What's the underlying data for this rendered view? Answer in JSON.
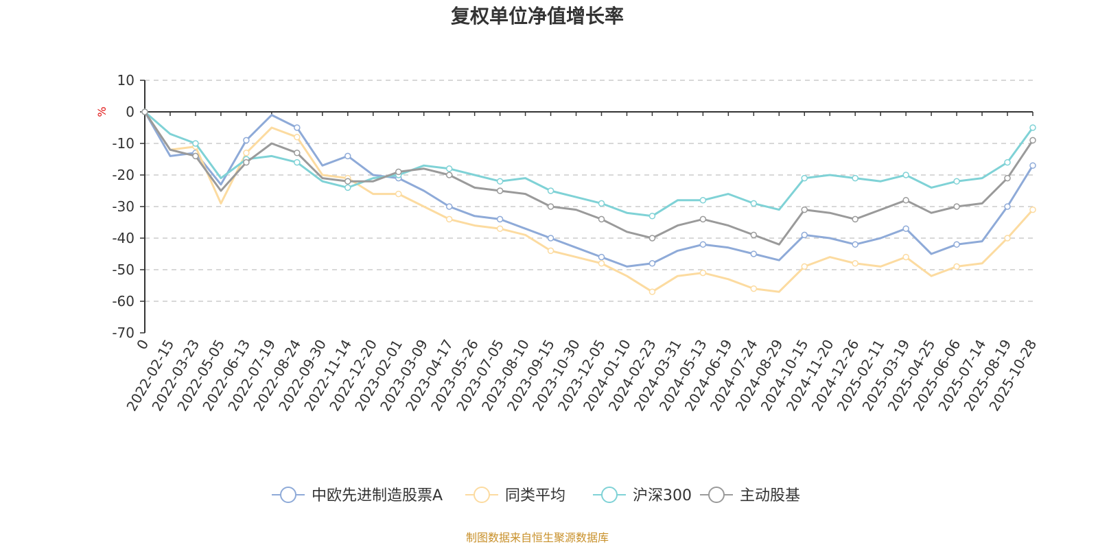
{
  "chart_data": {
    "type": "line",
    "title": "复权单位净值增长率",
    "ylabel": "%",
    "ylim": [
      -70,
      10
    ],
    "yticks": [
      10,
      0,
      -10,
      -20,
      -30,
      -40,
      -50,
      -60,
      -70
    ],
    "grid": true,
    "legend_position": "bottom",
    "x_tick_labels": [
      "0",
      "2022-02-15",
      "2022-03-23",
      "2022-05-05",
      "2022-06-13",
      "2022-07-19",
      "2022-08-24",
      "2022-09-30",
      "2022-11-14",
      "2022-12-20",
      "2023-02-01",
      "2023-03-09",
      "2023-04-17",
      "2023-05-26",
      "2023-07-05",
      "2023-08-10",
      "2023-09-15",
      "2023-10-30",
      "2023-12-05",
      "2024-01-10",
      "2024-02-23",
      "2024-03-31",
      "2024-05-13",
      "2024-06-19",
      "2024-07-24",
      "2024-08-29",
      "2024-10-15",
      "2024-11-20",
      "2024-12-26",
      "2025-02-11",
      "2025-03-19",
      "2025-04-25",
      "2025-06-06",
      "2025-07-14",
      "2025-08-19",
      "2025-10-28"
    ],
    "x": [
      "0",
      "2022-02-15",
      "2022-03-23",
      "2022-05-05",
      "2022-06-13",
      "2022-07-19",
      "2022-08-24",
      "2022-09-30",
      "2022-11-14",
      "2022-12-20",
      "2023-02-01",
      "2023-03-09",
      "2023-04-17",
      "2023-05-26",
      "2023-07-05",
      "2023-08-10",
      "2023-09-15",
      "2023-10-30",
      "2023-12-05",
      "2024-01-10",
      "2024-02-23",
      "2024-03-31",
      "2024-05-13",
      "2024-06-19",
      "2024-07-24",
      "2024-08-29",
      "2024-10-15",
      "2024-11-20",
      "2024-12-26",
      "2025-02-11",
      "2025-03-19",
      "2025-04-25",
      "2025-06-06",
      "2025-07-14",
      "2025-08-19",
      "2025-10-28"
    ],
    "series": [
      {
        "name": "中欧先进制造股票A",
        "color": "#8eaad8",
        "values": [
          0,
          -14,
          -13,
          -23,
          -9,
          -1,
          -5,
          -17,
          -14,
          -20,
          -21,
          -25,
          -30,
          -33,
          -34,
          -37,
          -40,
          -43,
          -46,
          -49,
          -48,
          -44,
          -42,
          -43,
          -45,
          -47,
          -39,
          -40,
          -42,
          -40,
          -37,
          -45,
          -42,
          -41,
          -30,
          -17
        ]
      },
      {
        "name": "同类平均",
        "color": "#fcdba0",
        "values": [
          0,
          -12,
          -11,
          -29,
          -13,
          -5,
          -8,
          -20,
          -21,
          -26,
          -26,
          -30,
          -34,
          -36,
          -37,
          -39,
          -44,
          -46,
          -48,
          -52,
          -57,
          -52,
          -51,
          -53,
          -56,
          -57,
          -49,
          -46,
          -48,
          -49,
          -46,
          -52,
          -49,
          -48,
          -40,
          -31
        ]
      },
      {
        "name": "沪深300",
        "color": "#7fd2d6",
        "values": [
          0,
          -7,
          -10,
          -21,
          -15,
          -14,
          -16,
          -22,
          -24,
          -21,
          -20,
          -17,
          -18,
          -20,
          -22,
          -21,
          -25,
          -27,
          -29,
          -32,
          -33,
          -28,
          -28,
          -26,
          -29,
          -31,
          -21,
          -20,
          -21,
          -22,
          -20,
          -24,
          -22,
          -21,
          -16,
          -5
        ]
      },
      {
        "name": "主动股基",
        "color": "#9a9a9a",
        "values": [
          0,
          -12,
          -14,
          -25,
          -16,
          -10,
          -13,
          -21,
          -22,
          -22,
          -19,
          -18,
          -20,
          -24,
          -25,
          -26,
          -30,
          -31,
          -34,
          -38,
          -40,
          -36,
          -34,
          -36,
          -39,
          -42,
          -31,
          -32,
          -34,
          -31,
          -28,
          -32,
          -30,
          -29,
          -21,
          -9
        ]
      }
    ]
  },
  "footer": {
    "source": "制图数据来自恒生聚源数据库"
  }
}
